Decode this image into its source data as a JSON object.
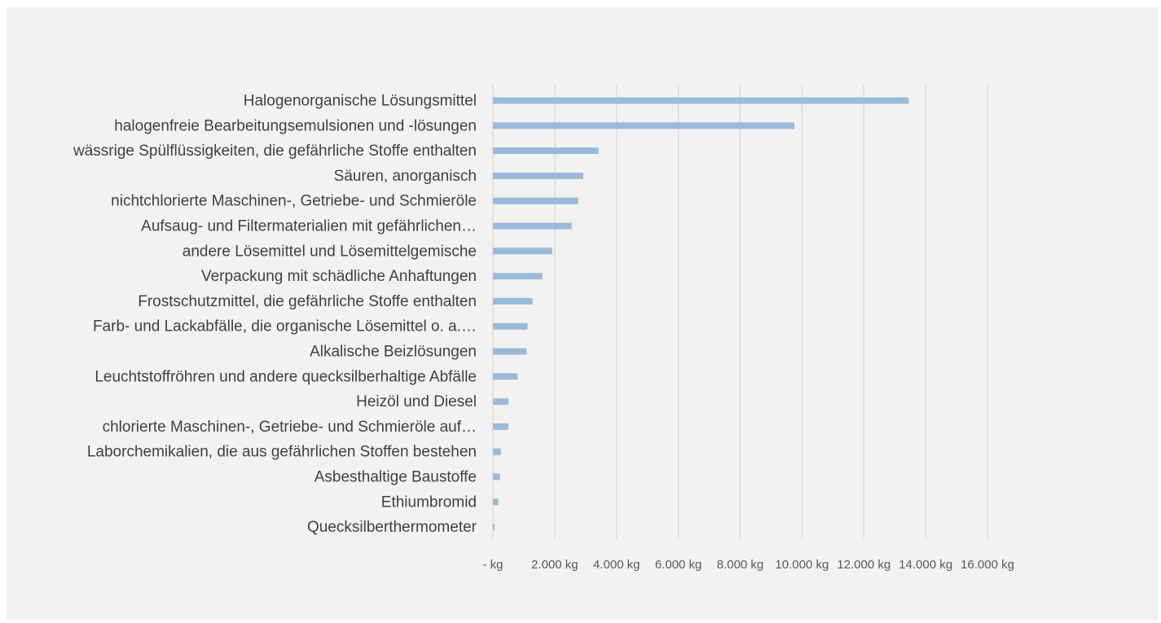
{
  "chart_data": {
    "type": "bar",
    "orientation": "horizontal",
    "categories": [
      "Halogenorganische Lösungsmittel",
      "halogenfreie Bearbeitungsemulsionen und -lösungen",
      "wässrige Spülflüssigkeiten, die gefährliche Stoffe enthalten",
      "Säuren, anorganisch",
      "nichtchlorierte Maschinen-, Getriebe- und Schmieröle",
      "Aufsaug- und Filtermaterialien mit gefährlichen…",
      "andere Lösemittel und Lösemittelgemische",
      "Verpackung mit schädliche Anhaftungen",
      "Frostschutzmittel, die gefährliche Stoffe enthalten",
      "Farb- und Lackabfälle, die organische Lösemittel o. a.…",
      "Alkalische Beizlösungen",
      "Leuchtstoffröhren und andere quecksilberhaltige Abfälle",
      "Heizöl und Diesel",
      "chlorierte Maschinen-, Getriebe- und Schmieröle auf…",
      "Laborchemikalien, die aus gefährlichen Stoffen bestehen",
      "Asbesthaltige Baustoffe",
      "Ethiumbromid",
      "Quecksilberthermometer"
    ],
    "values": [
      13450,
      9750,
      3420,
      2920,
      2760,
      2550,
      1920,
      1600,
      1280,
      1120,
      1090,
      800,
      500,
      500,
      260,
      230,
      170,
      50
    ],
    "xlim": [
      0,
      16000
    ],
    "xticks": [
      0,
      2000,
      4000,
      6000,
      8000,
      10000,
      12000,
      14000,
      16000
    ],
    "xtick_labels": [
      "- kg",
      "2.000 kg",
      "4.000 kg",
      "6.000 kg",
      "8.000 kg",
      "10.000 kg",
      "12.000 kg",
      "14.000 kg",
      "16.000 kg"
    ],
    "title": "",
    "xlabel": "",
    "ylabel": "",
    "grid": true,
    "legend": "none",
    "bar_color": "#9bbad9",
    "grid_color": "#d9d9d9",
    "background": "#f2f2f2"
  }
}
